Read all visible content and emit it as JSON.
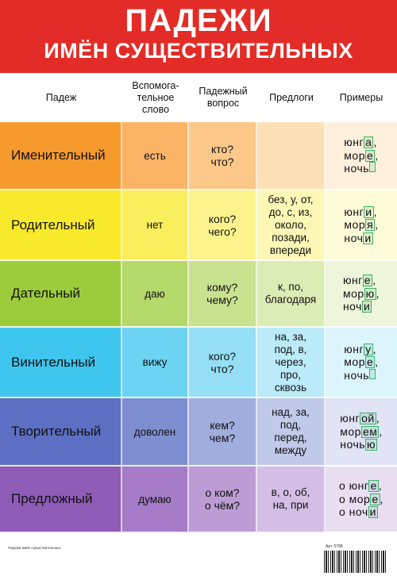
{
  "header": {
    "title": "ПАДЕЖИ",
    "subtitle": "ИМЁН СУЩЕСТВИТЕЛЬНЫХ"
  },
  "columns": [
    "Падеж",
    "Вспомога-\nтельное\nслово",
    "Падежный\nвопрос",
    "Предлоги",
    "Примеры"
  ],
  "rows": [
    {
      "case": "Именительный",
      "aux": "есть",
      "question": [
        "кто?",
        "что?"
      ],
      "prepositions": [],
      "examples": [
        [
          "юнг",
          "а",
          ","
        ],
        [
          "мор",
          "е",
          ","
        ],
        [
          "ночь",
          "",
          ""
        ]
      ],
      "colors": [
        "#f79a2e",
        "#fbb366",
        "#fcc88a",
        "#fde0b6",
        "#fef0dc"
      ]
    },
    {
      "case": "Родительный",
      "aux": "нет",
      "question": [
        "кого?",
        "чего?"
      ],
      "prepositions": [
        "без, у, от,",
        "до, с, из,",
        "около,",
        "позади,",
        "впереди"
      ],
      "examples": [
        [
          "юнг",
          "и",
          ","
        ],
        [
          "мор",
          "я",
          ","
        ],
        [
          "ноч",
          "и",
          ""
        ]
      ],
      "colors": [
        "#f9e92b",
        "#fbee5d",
        "#fcf38c",
        "#fdf7b6",
        "#fefbd9"
      ]
    },
    {
      "case": "Дательный",
      "aux": "даю",
      "question": [
        "кому?",
        "чему?"
      ],
      "prepositions": [
        "к, по,",
        "благодаря"
      ],
      "examples": [
        [
          "юнг",
          "е",
          ","
        ],
        [
          "мор",
          "ю",
          ","
        ],
        [
          "ноч",
          "и",
          ""
        ]
      ],
      "colors": [
        "#9ccc3c",
        "#b5d86a",
        "#c9e290",
        "#dcecb5",
        "#edf5da"
      ]
    },
    {
      "case": "Винительный",
      "aux": "вижу",
      "question": [
        "кого?",
        "что?"
      ],
      "prepositions": [
        "на, за,",
        "под, в,",
        "через,",
        "про,",
        "сквозь"
      ],
      "examples": [
        [
          "юнг",
          "у",
          ","
        ],
        [
          "мор",
          "е",
          ","
        ],
        [
          "ночь",
          "",
          ""
        ]
      ],
      "colors": [
        "#3ec6ef",
        "#6dd3f3",
        "#95dff6",
        "#bbeaf9",
        "#dcf4fc"
      ]
    },
    {
      "case": "Творительный",
      "aux": "доволен",
      "question": [
        "кем?",
        "чем?"
      ],
      "prepositions": [
        "над, за,",
        "под,",
        "перед,",
        "между"
      ],
      "examples": [
        [
          "юнг",
          "ой",
          ","
        ],
        [
          "мор",
          "ем",
          ","
        ],
        [
          "ночь",
          "ю",
          ""
        ]
      ],
      "colors": [
        "#5c6fc2",
        "#7e8ed0",
        "#a0addd",
        "#c1c9ea",
        "#e0e4f4"
      ]
    },
    {
      "case": "Предложный",
      "aux": "думаю",
      "question": [
        "о ком?",
        "о чём?"
      ],
      "prepositions": [
        "в, о, об,",
        "на, при"
      ],
      "examples": [
        [
          "о юнг",
          "е",
          ","
        ],
        [
          "о мор",
          "е",
          ","
        ],
        [
          "о ноч",
          "и",
          ""
        ]
      ],
      "colors": [
        "#8f5cb8",
        "#a67bc7",
        "#bd9cd6",
        "#d4bee5",
        "#eadff2"
      ]
    }
  ],
  "footer": {
    "left": "Падежи имён существительных",
    "article": "Арт. 5788"
  }
}
